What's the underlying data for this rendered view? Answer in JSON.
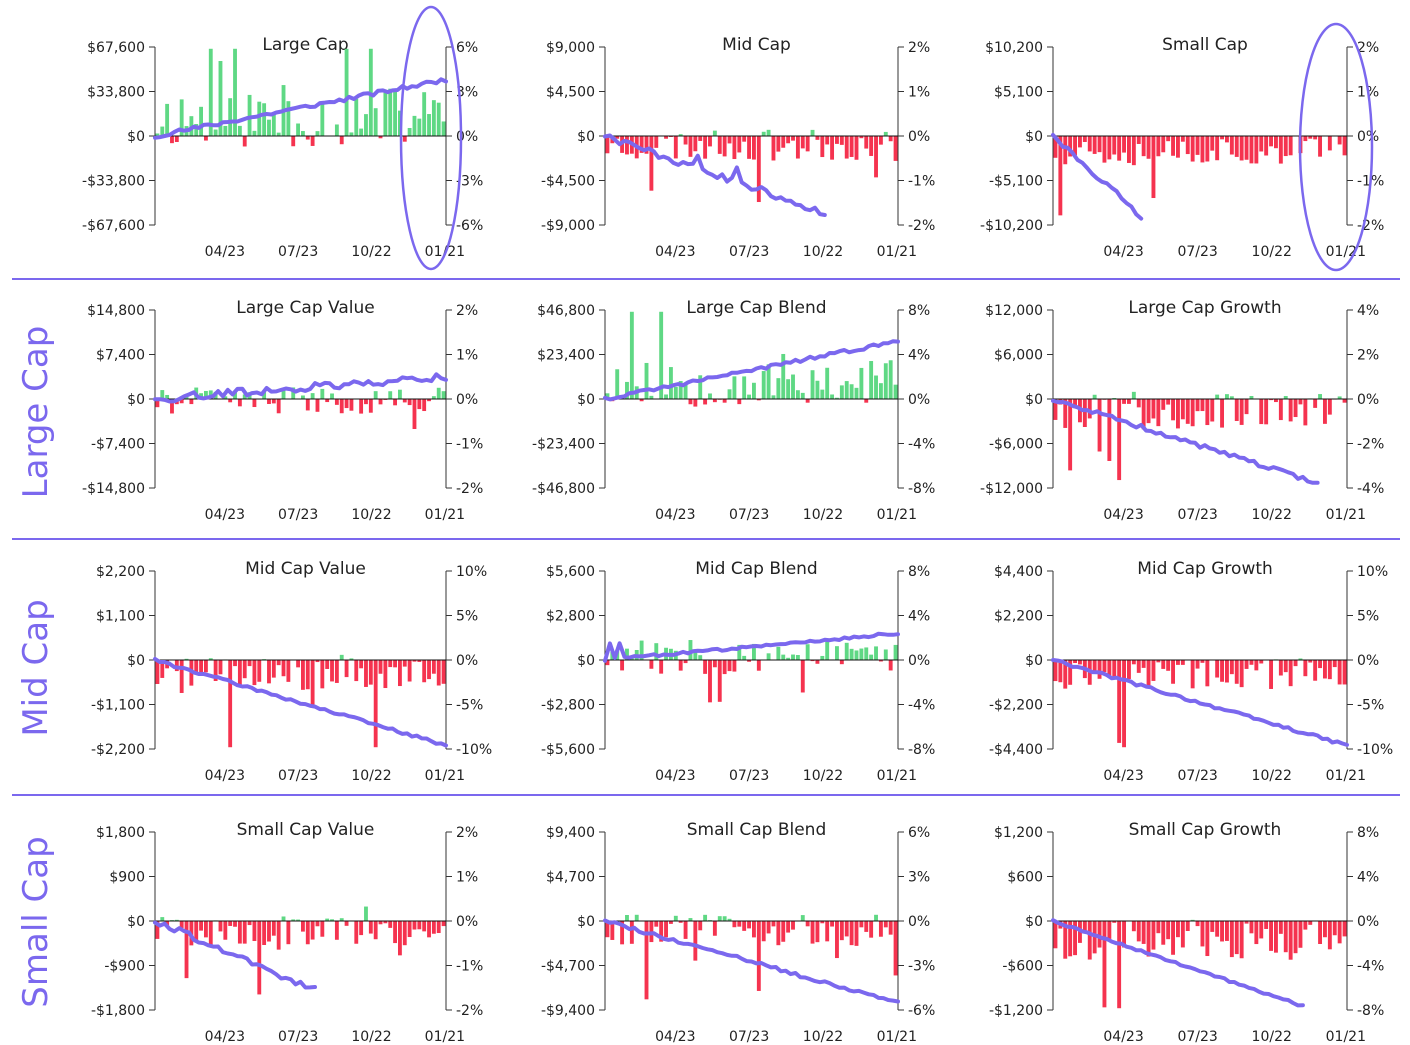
{
  "colors": {
    "positive_bar": "#5fd884",
    "negative_bar": "#f5334f",
    "cumulative_line": "#7b68ee",
    "row_label": "#7b68ee",
    "separator": "#7b68ee",
    "annotation_ellipse": "#7b68ee"
  },
  "row_labels": [
    "",
    "Large Cap",
    "Mid Cap",
    "Small Cap"
  ],
  "x_tick_labels": [
    "04/23",
    "07/23",
    "10/22",
    "01/21"
  ],
  "chart_data": [
    {
      "type": "bar",
      "title": "Large Cap",
      "seed": 11,
      "trend": 0.9,
      "vol": 0.6,
      "jumps": 0,
      "left_ticks": [
        "$67,600",
        "$33,800",
        "$0",
        "-$33,800",
        "-$67,600"
      ],
      "ylim_left": [
        -67600,
        67600
      ],
      "right_ticks": [
        "6%",
        "3%",
        "0%",
        "-3%",
        "-6%"
      ],
      "ylim_right": [
        -6,
        6
      ],
      "line_end": 3.8,
      "line_clip": 1.0,
      "bar_bias": 0.6,
      "bar_scale": 0.7,
      "x_ticks": [
        "04/23",
        "07/23",
        "10/22",
        "01/21"
      ],
      "legend": "none",
      "grid": false
    },
    {
      "type": "bar",
      "title": "Mid Cap",
      "seed": 23,
      "trend": -1,
      "vol": 1,
      "jumps": 2,
      "left_ticks": [
        "$9,000",
        "$4,500",
        "$0",
        "-$4,500",
        "-$9,000"
      ],
      "ylim_left": [
        -9000,
        9000
      ],
      "right_ticks": [
        "2%",
        "1%",
        "0%",
        "-1%",
        "-2%"
      ],
      "ylim_right": [
        -2,
        2
      ],
      "line_end": -2.3,
      "line_clip": 0.76,
      "bar_bias": -0.3,
      "bar_scale": 0.35,
      "x_ticks": [
        "04/23",
        "07/23",
        "10/22",
        "01/21"
      ],
      "legend": "none",
      "grid": false
    },
    {
      "type": "bar",
      "title": "Small Cap",
      "seed": 37,
      "trend": -1,
      "vol": 0.8,
      "jumps": 0,
      "left_ticks": [
        "$10,200",
        "$5,100",
        "$0",
        "-$5,100",
        "-$10,200"
      ],
      "ylim_left": [
        -10200,
        10200
      ],
      "right_ticks": [
        "2%",
        "1%",
        "0%",
        "-1%",
        "-2%"
      ],
      "ylim_right": [
        -2,
        2
      ],
      "line_end": -6.0,
      "line_clip": 0.3,
      "bar_bias": -0.45,
      "bar_scale": 0.35,
      "x_ticks": [
        "04/23",
        "07/23",
        "10/22",
        "01/21"
      ],
      "legend": "none",
      "grid": false
    },
    {
      "type": "bar",
      "title": "Large Cap Value",
      "seed": 41,
      "trend": 0.5,
      "vol": 1.1,
      "jumps": 2,
      "left_ticks": [
        "$14,800",
        "$7,400",
        "$0",
        "-$7,400",
        "-$14,800"
      ],
      "ylim_left": [
        -14800,
        14800
      ],
      "right_ticks": [
        "2%",
        "1%",
        "0%",
        "-1%",
        "-2%"
      ],
      "ylim_right": [
        -2,
        2
      ],
      "line_end": 0.5,
      "line_clip": 1.0,
      "bar_bias": -0.05,
      "bar_scale": 0.3,
      "x_ticks": [
        "04/23",
        "07/23",
        "10/22",
        "01/21"
      ],
      "legend": "none",
      "grid": false
    },
    {
      "type": "bar",
      "title": "Large Cap Blend",
      "seed": 53,
      "trend": 1,
      "vol": 0.5,
      "jumps": 0,
      "left_ticks": [
        "$46,800",
        "$23,400",
        "$0",
        "-$23,400",
        "-$46,800"
      ],
      "ylim_left": [
        -46800,
        46800
      ],
      "right_ticks": [
        "8%",
        "4%",
        "0%",
        "-4%",
        "-8%"
      ],
      "ylim_right": [
        -8,
        8
      ],
      "line_end": 5.2,
      "line_clip": 1.0,
      "bar_bias": 0.6,
      "bar_scale": 0.6,
      "x_ticks": [
        "04/23",
        "07/23",
        "10/22",
        "01/21"
      ],
      "legend": "none",
      "grid": false
    },
    {
      "type": "bar",
      "title": "Large Cap Growth",
      "seed": 67,
      "trend": -1,
      "vol": 0.6,
      "jumps": 0,
      "left_ticks": [
        "$12,000",
        "$6,000",
        "$0",
        "-$6,000",
        "-$12,000"
      ],
      "ylim_left": [
        -12000,
        12000
      ],
      "right_ticks": [
        "4%",
        "2%",
        "0%",
        "-2%",
        "-4%"
      ],
      "ylim_right": [
        -4,
        4
      ],
      "line_end": -4.2,
      "line_clip": 0.9,
      "bar_bias": -0.4,
      "bar_scale": 0.4,
      "x_ticks": [
        "04/23",
        "07/23",
        "10/22",
        "01/21"
      ],
      "legend": "none",
      "grid": false
    },
    {
      "type": "bar",
      "title": "Mid Cap Value",
      "seed": 71,
      "trend": -1,
      "vol": 0.4,
      "jumps": 0,
      "left_ticks": [
        "$2,200",
        "$1,100",
        "$0",
        "-$1,100",
        "-$2,200"
      ],
      "ylim_left": [
        -2200,
        2200
      ],
      "right_ticks": [
        "10%",
        "5%",
        "0%",
        "-5%",
        "-10%"
      ],
      "ylim_right": [
        -10,
        10
      ],
      "line_end": -9.6,
      "line_clip": 1.0,
      "bar_bias": -0.5,
      "bar_scale": 0.4,
      "x_ticks": [
        "04/23",
        "07/23",
        "10/22",
        "01/21"
      ],
      "legend": "none",
      "grid": false
    },
    {
      "type": "bar",
      "title": "Mid Cap Blend",
      "seed": 83,
      "trend": 0.4,
      "vol": 0.4,
      "jumps": 2,
      "left_ticks": [
        "$5,600",
        "$2,800",
        "$0",
        "-$2,800",
        "-$5,600"
      ],
      "ylim_left": [
        -5600,
        5600
      ],
      "right_ticks": [
        "8%",
        "4%",
        "0%",
        "-4%",
        "-8%"
      ],
      "ylim_right": [
        -8,
        8
      ],
      "line_end": 2.4,
      "line_clip": 1.0,
      "bar_bias": 0.1,
      "bar_scale": 0.4,
      "x_ticks": [
        "04/23",
        "07/23",
        "10/22",
        "01/21"
      ],
      "legend": "none",
      "grid": false
    },
    {
      "type": "bar",
      "title": "Mid Cap Growth",
      "seed": 97,
      "trend": -1,
      "vol": 0.4,
      "jumps": 0,
      "left_ticks": [
        "$4,400",
        "$2,200",
        "$0",
        "-$2,200",
        "-$4,400"
      ],
      "ylim_left": [
        -4400,
        4400
      ],
      "right_ticks": [
        "10%",
        "5%",
        "0%",
        "-5%",
        "-10%"
      ],
      "ylim_right": [
        -10,
        10
      ],
      "line_end": -9.6,
      "line_clip": 1.0,
      "bar_bias": -0.45,
      "bar_scale": 0.35,
      "x_ticks": [
        "04/23",
        "07/23",
        "10/22",
        "01/21"
      ],
      "legend": "none",
      "grid": false
    },
    {
      "type": "bar",
      "title": "Small Cap Value",
      "seed": 101,
      "trend": -1,
      "vol": 1,
      "jumps": 1,
      "left_ticks": [
        "$1,800",
        "$900",
        "$0",
        "-$900",
        "-$1,800"
      ],
      "ylim_left": [
        -1800,
        1800
      ],
      "right_ticks": [
        "2%",
        "1%",
        "0%",
        "-1%",
        "-2%"
      ],
      "ylim_right": [
        -2,
        2
      ],
      "line_end": -2.8,
      "line_clip": 0.55,
      "bar_bias": -0.35,
      "bar_scale": 0.35,
      "x_ticks": [
        "04/23",
        "07/23",
        "10/22",
        "01/21"
      ],
      "legend": "none",
      "grid": false
    },
    {
      "type": "bar",
      "title": "Small Cap Blend",
      "seed": 113,
      "trend": -1,
      "vol": 0.5,
      "jumps": 0,
      "left_ticks": [
        "$9,400",
        "$4,700",
        "$0",
        "-$4,700",
        "-$9,400"
      ],
      "ylim_left": [
        -9400,
        9400
      ],
      "right_ticks": [
        "6%",
        "3%",
        "0%",
        "-3%",
        "-6%"
      ],
      "ylim_right": [
        -6,
        6
      ],
      "line_end": -5.5,
      "line_clip": 1.0,
      "bar_bias": -0.3,
      "bar_scale": 0.35,
      "x_ticks": [
        "04/23",
        "07/23",
        "10/22",
        "01/21"
      ],
      "legend": "none",
      "grid": false
    },
    {
      "type": "bar",
      "title": "Small Cap Growth",
      "seed": 127,
      "trend": -1,
      "vol": 0.3,
      "jumps": 0,
      "left_ticks": [
        "$1,200",
        "$600",
        "$0",
        "-$600",
        "-$1,200"
      ],
      "ylim_left": [
        -1200,
        1200
      ],
      "right_ticks": [
        "8%",
        "4%",
        "0%",
        "-4%",
        "-8%"
      ],
      "ylim_right": [
        -8,
        8
      ],
      "line_end": -9.0,
      "line_clip": 0.85,
      "bar_bias": -0.6,
      "bar_scale": 0.45,
      "x_ticks": [
        "04/23",
        "07/23",
        "10/22",
        "01/21"
      ],
      "legend": "none",
      "grid": false
    }
  ]
}
